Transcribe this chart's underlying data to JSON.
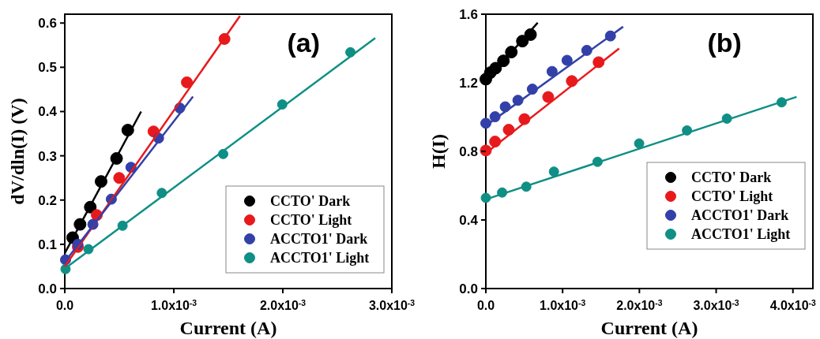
{
  "chart_data": [
    {
      "type": "scatter",
      "ylabel": "dV/dln(I) (V)",
      "xlabel": "Current (A)",
      "annotations": [
        "(a)"
      ],
      "legend": "bottom right",
      "marker": "circle",
      "xlim": [
        0,
        0.003
      ],
      "xticks": [
        {
          "value": 0,
          "label": "0.0"
        },
        {
          "value": 0.001,
          "label": "1.0x10$^{-3}$"
        },
        {
          "value": 0.002,
          "label": "2.0x10$^{-3}$"
        },
        {
          "value": 0.003,
          "label": "3.0x10$^{-3}$"
        }
      ],
      "ylim": [
        0,
        0.62
      ],
      "yticks": [
        {
          "value": 0,
          "label": "0.0"
        },
        0.1,
        0.2,
        0.3,
        0.4,
        0.5,
        0.6
      ],
      "series": [
        {
          "name": "CCTO' Dark",
          "color": "#000000",
          "x": [
            7.2e-05,
            0.00014,
            0.000234,
            0.000333,
            0.000475,
            0.000578
          ],
          "values": [
            0.115,
            0.145,
            0.184,
            0.242,
            0.294,
            0.358
          ]
        },
        {
          "name": "CCTO' Light",
          "color": "#e8191c",
          "x": [
            0.00012,
            0.000294,
            0.000499,
            0.000814,
            0.00112,
            0.001465
          ],
          "values": [
            0.094,
            0.166,
            0.25,
            0.355,
            0.466,
            0.564
          ]
        },
        {
          "name": "ACCTO1' Dark",
          "color": "#3340a8",
          "x": [
            7e-06,
            0.00012,
            0.000258,
            0.000427,
            0.000607,
            0.00086,
            0.001055
          ],
          "values": [
            0.065,
            0.1,
            0.145,
            0.202,
            0.274,
            0.34,
            0.408
          ]
        },
        {
          "name": "ACCTO1' Light",
          "color": "#0f8f85",
          "x": [
            7e-06,
            0.000217,
            0.00053,
            0.00089,
            0.001453,
            0.001995,
            0.00262
          ],
          "values": [
            0.044,
            0.089,
            0.142,
            0.216,
            0.304,
            0.416,
            0.534
          ]
        },
        {
          "type": "line",
          "marker": "none",
          "color": "#000000",
          "x": [
            0,
            0.0007
          ],
          "values": [
            0.08,
            0.4
          ]
        },
        {
          "type": "line",
          "marker": "none",
          "color": "#e8191c",
          "x": [
            0,
            0.001607
          ],
          "values": [
            0.05,
            0.616
          ]
        },
        {
          "type": "line",
          "marker": "none",
          "color": "#3340a8",
          "x": [
            0,
            0.001176
          ],
          "values": [
            0.06,
            0.434
          ]
        },
        {
          "type": "line",
          "marker": "none",
          "color": "#0f8f85",
          "x": [
            0,
            0.002848
          ],
          "values": [
            0.045,
            0.566
          ]
        }
      ]
    },
    {
      "type": "scatter",
      "ylabel": "H(I)",
      "xlabel": "Current (A)",
      "annotations": [
        "(b)"
      ],
      "legend": "bottom right",
      "marker": "circle",
      "xlim": [
        0,
        0.00426
      ],
      "xticks": [
        {
          "value": 0,
          "label": "0.0"
        },
        {
          "value": 0.001,
          "label": "1.0x10$^{-3}$"
        },
        {
          "value": 0.002,
          "label": "2.0x10$^{-3}$"
        },
        {
          "value": 0.003,
          "label": "3.0x10$^{-3}$"
        },
        {
          "value": 0.004,
          "label": "4.0x10$^{-3}$"
        }
      ],
      "ylim": [
        0,
        1.6
      ],
      "yticks": [
        {
          "value": 0,
          "label": "0.0"
        },
        0.4,
        0.8,
        1.2,
        1.6
      ],
      "series": [
        {
          "name": "CCTO' Dark",
          "color": "#000000",
          "x": [
            0,
            5.8e-05,
            0.000127,
            0.000229,
            0.000332,
            0.000476,
            0.000582
          ],
          "values": [
            1.221,
            1.259,
            1.285,
            1.328,
            1.379,
            1.443,
            1.481
          ]
        },
        {
          "name": "CCTO' Light",
          "color": "#e8191c",
          "x": [
            0,
            0.00012,
            0.000298,
            0.000503,
            0.000812,
            0.00112,
            0.001469
          ],
          "values": [
            0.805,
            0.857,
            0.926,
            0.988,
            1.117,
            1.21,
            1.32
          ]
        },
        {
          "name": "ACCTO1' Dark",
          "color": "#3340a8",
          "x": [
            0,
            0.00012,
            0.000253,
            0.000418,
            0.000606,
            0.000863,
            0.001058,
            0.001315,
            0.001623
          ],
          "values": [
            0.964,
            1.002,
            1.06,
            1.098,
            1.163,
            1.266,
            1.331,
            1.389,
            1.473
          ]
        },
        {
          "name": "ACCTO1' Light",
          "color": "#0f8f85",
          "x": [
            0,
            0.000212,
            0.000527,
            0.000887,
            0.001455,
            0.001997,
            0.00262,
            0.00314,
            0.003853
          ],
          "values": [
            0.529,
            0.56,
            0.594,
            0.682,
            0.739,
            0.846,
            0.922,
            0.991,
            1.086
          ]
        },
        {
          "type": "line",
          "marker": "none",
          "color": "#000000",
          "x": [
            0,
            0.000675
          ],
          "values": [
            1.21,
            1.55
          ]
        },
        {
          "type": "line",
          "marker": "none",
          "color": "#e8191c",
          "x": [
            0,
            0.001736
          ],
          "values": [
            0.79,
            1.4
          ]
        },
        {
          "type": "line",
          "marker": "none",
          "color": "#3340a8",
          "x": [
            0,
            0.001788
          ],
          "values": [
            0.95,
            1.527
          ]
        },
        {
          "type": "line",
          "marker": "none",
          "color": "#0f8f85",
          "x": [
            0,
            0.004048
          ],
          "values": [
            0.52,
            1.118
          ]
        }
      ]
    }
  ]
}
